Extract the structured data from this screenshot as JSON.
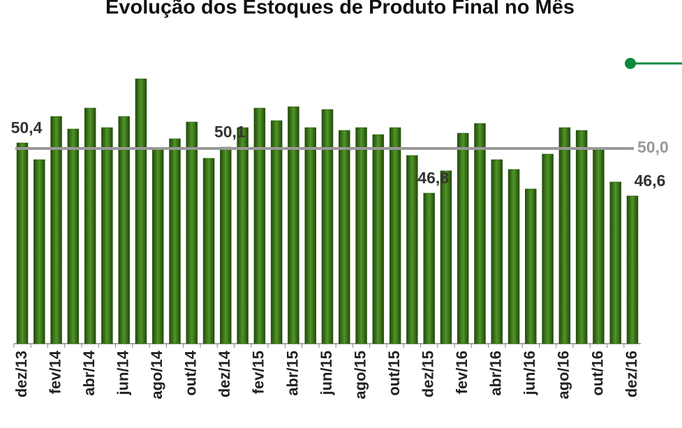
{
  "chart_data": {
    "type": "bar",
    "title": "Evolução dos Estoques de Produto Final no Mês",
    "categories": [
      "dez/13",
      null,
      "fev/14",
      null,
      "abr/14",
      null,
      "jun/14",
      null,
      "ago/14",
      null,
      "out/14",
      null,
      "dez/14",
      null,
      "fev/15",
      null,
      "abr/15",
      null,
      "jun/15",
      null,
      "ago/15",
      null,
      "out/15",
      null,
      "dez/15",
      null,
      "fev/16",
      null,
      "abr/16",
      null,
      "jun/16",
      null,
      "ago/16",
      null,
      "out/16",
      null,
      "dez/16"
    ],
    "values": [
      50.4,
      49.2,
      52.3,
      51.4,
      52.9,
      51.5,
      52.3,
      55.0,
      50.0,
      50.7,
      51.9,
      49.3,
      50.1,
      51.5,
      52.9,
      52.0,
      53.0,
      51.5,
      52.8,
      51.3,
      51.5,
      51.0,
      51.5,
      49.5,
      46.8,
      48.4,
      51.1,
      51.8,
      49.2,
      48.5,
      47.1,
      49.6,
      51.5,
      51.3,
      49.9,
      47.6,
      46.6
    ],
    "value_labels": [
      "50,4",
      null,
      null,
      null,
      null,
      null,
      null,
      null,
      null,
      null,
      null,
      null,
      "50,1",
      null,
      null,
      null,
      null,
      null,
      null,
      null,
      null,
      null,
      null,
      null,
      "46,8",
      null,
      null,
      null,
      null,
      null,
      null,
      null,
      null,
      null,
      null,
      null,
      "46,6"
    ],
    "color": "#4e9626",
    "ylim": [
      36,
      56
    ],
    "reference_line": {
      "value": 50,
      "label": "50,0",
      "color": "#999999"
    }
  }
}
